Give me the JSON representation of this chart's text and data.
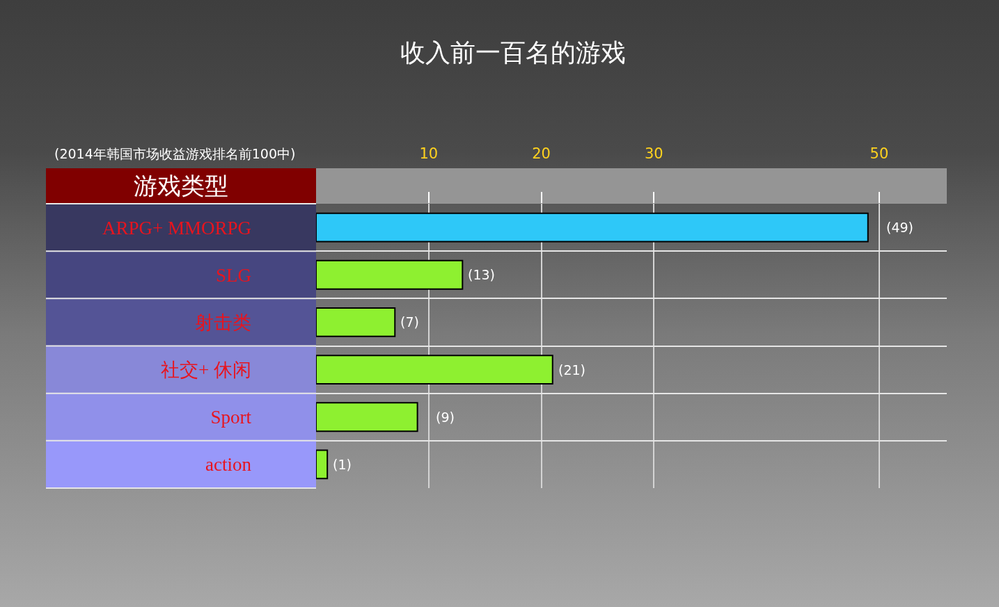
{
  "chart_data": {
    "type": "bar",
    "orientation": "horizontal",
    "title": "收入前一百名的游戏",
    "subtitle": "(2014年韩国市场收益游戏排名前100中)",
    "ylabel": "游戏类型",
    "categories": [
      "ARPG+ MMORPG",
      "SLG",
      "射击类",
      "社交+ 休闲",
      "Sport",
      "action"
    ],
    "values": [
      49,
      13,
      7,
      21,
      9,
      1
    ],
    "value_labels": [
      "(49)",
      "(13)",
      "(7)",
      "(21)",
      "(9)",
      "(1)"
    ],
    "colors": [
      "#2ec8f8",
      "#8ef030",
      "#8ef030",
      "#8ef030",
      "#8ef030",
      "#8ef030"
    ],
    "xlim": [
      0,
      56
    ],
    "xticks": [
      10,
      20,
      30,
      50
    ],
    "grid": true
  }
}
